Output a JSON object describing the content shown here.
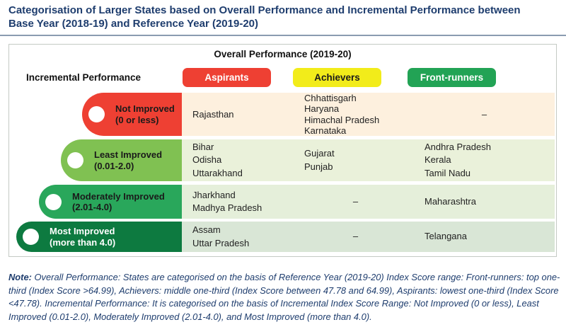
{
  "title": {
    "line1": "Categorisation of Larger States based on Overall Performance and Incremental Performance between",
    "line2": "Base Year (2018-19) and Reference Year (2019-20)"
  },
  "chart_data": {
    "type": "table",
    "title": "Categorisation of Larger States based on Overall Performance and Incremental Performance between Base Year (2018-19) and Reference Year (2019-20)",
    "column_axis_label": "Overall Performance (2019-20)",
    "row_axis_label": "Incremental Performance",
    "columns": [
      {
        "label": "Aspirants",
        "color": "#ee4033",
        "text_color": "#ffffff"
      },
      {
        "label": "Achievers",
        "color": "#f2ec1a",
        "text_color": "#1a1a1a"
      },
      {
        "label": "Front-runners",
        "color": "#22a355",
        "text_color": "#ffffff"
      }
    ],
    "rows": [
      {
        "label": "Not Improved",
        "range": "(0 or less)",
        "capsule_color": "#ee4033",
        "cell_color": "#fdf0de",
        "label_text_color": "#1a1a1a",
        "cells": [
          [
            "Rajasthan"
          ],
          [
            "Chhattisgarh",
            "Haryana",
            "Himachal Pradesh",
            "Karnataka"
          ],
          [
            "–"
          ]
        ]
      },
      {
        "label": "Least Improved",
        "range": "(0.01-2.0)",
        "capsule_color": "#80c152",
        "cell_color": "#eaf1da",
        "label_text_color": "#1a1a1a",
        "cells": [
          [
            "Bihar",
            "Odisha",
            "Uttarakhand"
          ],
          [
            "Gujarat",
            "Punjab"
          ],
          [
            "Andhra Pradesh",
            "Kerala",
            "Tamil Nadu"
          ]
        ]
      },
      {
        "label": "Moderately Improved",
        "range": "(2.01-4.0)",
        "capsule_color": "#29a75b",
        "cell_color": "#e5efda",
        "label_text_color": "#1a1a1a",
        "cells": [
          [
            "Jharkhand",
            "Madhya Pradesh"
          ],
          [
            "–"
          ],
          [
            "Maharashtra"
          ]
        ]
      },
      {
        "label": "Most Improved",
        "range": "(more than 4.0)",
        "capsule_color": "#0d7a40",
        "cell_color": "#d9e6d6",
        "label_text_color": "#ffffff",
        "cells": [
          [
            "Assam",
            "Uttar Pradesh"
          ],
          [
            "–"
          ],
          [
            "Telangana"
          ]
        ]
      }
    ]
  },
  "note": {
    "label": "Note:",
    "text": " Overall Performance: States are categorised on the basis of Reference Year (2019-20) Index Score range: Front-runners: top one-third (Index Score >64.99), Achievers: middle one-third (Index Score between 47.78 and 64.99), Aspirants: lowest one-third (Index Score <47.78). Incremental Performance: It is categorised on the basis of Incremental Index Score Range: Not Improved (0 or less), Least Improved (0.01-2.0), Moderately Improved (2.01-4.0), and Most Improved (more than 4.0)."
  }
}
